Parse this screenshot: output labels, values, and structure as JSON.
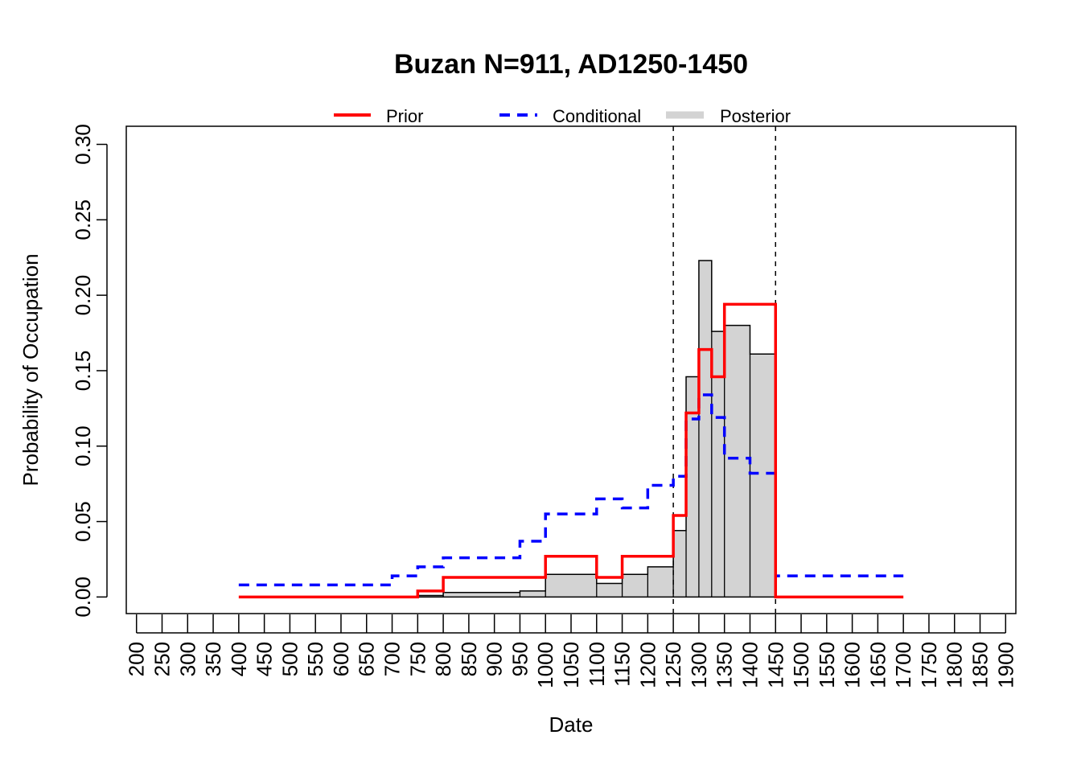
{
  "chart_data": {
    "type": "line",
    "title": "Buzan N=911, AD1250-1450",
    "xlabel": "Date",
    "ylabel": "Probability of Occupation",
    "xlim": [
      180,
      1920
    ],
    "ylim": [
      -0.011,
      0.312
    ],
    "x_ticks": [
      200,
      250,
      300,
      350,
      400,
      450,
      500,
      550,
      600,
      650,
      700,
      750,
      800,
      850,
      900,
      950,
      1000,
      1050,
      1100,
      1150,
      1200,
      1250,
      1300,
      1350,
      1400,
      1450,
      1500,
      1550,
      1600,
      1650,
      1700,
      1750,
      1800,
      1850,
      1900
    ],
    "y_ticks": [
      0.0,
      0.05,
      0.1,
      0.15,
      0.2,
      0.25,
      0.3
    ],
    "y_tick_labels": [
      "0.00",
      "0.05",
      "0.10",
      "0.15",
      "0.20",
      "0.25",
      "0.30"
    ],
    "vlines": [
      1250,
      1450
    ],
    "legend_position": "top",
    "grid": false,
    "series": [
      {
        "name": "Prior",
        "style": "solid",
        "color": "#ff0000",
        "x": [
          400,
          750,
          800,
          1000,
          1100,
          1150,
          1250,
          1275,
          1300,
          1325,
          1350,
          1450,
          1700
        ],
        "values": [
          0,
          0.004,
          0.013,
          0.027,
          0.013,
          0.027,
          0.054,
          0.122,
          0.164,
          0.146,
          0.194,
          0,
          0
        ]
      },
      {
        "name": "Conditional",
        "style": "dashed",
        "color": "#0000ff",
        "x": [
          400,
          700,
          750,
          800,
          950,
          1000,
          1100,
          1150,
          1200,
          1250,
          1275,
          1300,
          1325,
          1350,
          1400,
          1450,
          1700
        ],
        "values": [
          0.008,
          0.014,
          0.02,
          0.026,
          0.037,
          0.055,
          0.065,
          0.059,
          0.074,
          0.08,
          0.118,
          0.134,
          0.119,
          0.092,
          0.082,
          0.014,
          0.014
        ]
      },
      {
        "name": "Posterior",
        "style": "filled",
        "color": "#d3d3d3",
        "x": [
          750,
          800,
          950,
          1000,
          1100,
          1150,
          1200,
          1250,
          1275,
          1300,
          1325,
          1350,
          1400,
          1450
        ],
        "values": [
          0.001,
          0.003,
          0.004,
          0.015,
          0.009,
          0.015,
          0.02,
          0.044,
          0.146,
          0.223,
          0.176,
          0.18,
          0.161,
          0
        ]
      }
    ]
  }
}
